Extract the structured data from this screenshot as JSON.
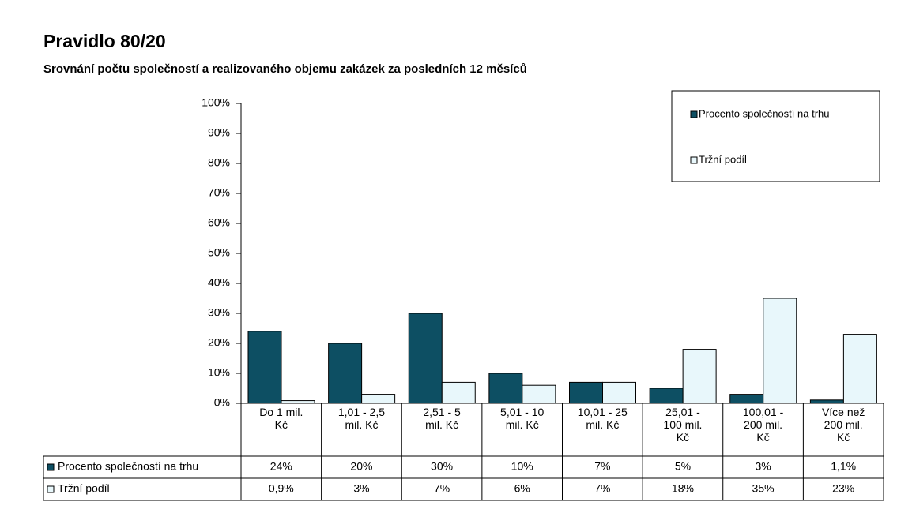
{
  "chart_data": {
    "type": "bar",
    "title": "Pravidlo 80/20",
    "subtitle": "Srovnání počtu společností a realizovaného objemu zakázek za posledních 12 měsíců",
    "categories": [
      "Do 1 mil. Kč",
      "1,01 - 2,5 mil. Kč",
      "2,51 - 5 mil. Kč",
      "5,01 - 10 mil. Kč",
      "10,01 - 25 mil. Kč",
      "25,01 - 100 mil. Kč",
      "100,01 - 200 mil. Kč",
      "Více než 200 mil. Kč"
    ],
    "series": [
      {
        "name": "Procento společností na trhu",
        "color": "#0d4f63",
        "values": [
          24,
          20,
          30,
          10,
          7,
          5,
          3,
          1.1
        ],
        "value_labels": [
          "24%",
          "20%",
          "30%",
          "10%",
          "7%",
          "5%",
          "3%",
          "1,1%"
        ]
      },
      {
        "name": "Tržní podíl",
        "color": "#e8f7fb",
        "values": [
          0.9,
          3,
          7,
          6,
          7,
          18,
          35,
          23
        ],
        "value_labels": [
          "0,9%",
          "3%",
          "7%",
          "6%",
          "7%",
          "18%",
          "35%",
          "23%"
        ]
      }
    ],
    "ylim": [
      0,
      100
    ],
    "yticks": [
      {
        "value": 0,
        "label": "0%"
      },
      {
        "value": 10,
        "label": "10%"
      },
      {
        "value": 20,
        "label": "20%"
      },
      {
        "value": 30,
        "label": "30%"
      },
      {
        "value": 40,
        "label": "40%"
      },
      {
        "value": 50,
        "label": "50%"
      },
      {
        "value": 60,
        "label": "60%"
      },
      {
        "value": 70,
        "label": "70%"
      },
      {
        "value": 80,
        "label": "80%"
      },
      {
        "value": 90,
        "label": "90%"
      },
      {
        "value": 100,
        "label": "100%"
      }
    ],
    "grid": false,
    "legend": "top-right"
  }
}
